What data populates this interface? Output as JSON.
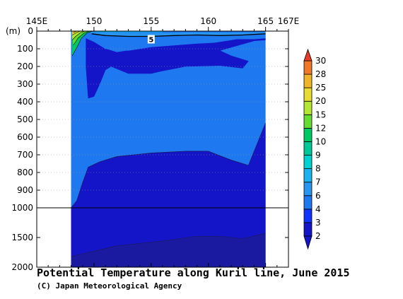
{
  "chart_data": {
    "type": "contour",
    "title": "Potential Temperature along Kuril line, June 2015",
    "credit": "(C) Japan Meteorological Agency",
    "x_axis": {
      "ticks": [
        "145E",
        "150",
        "155",
        "160",
        "165",
        "167E"
      ],
      "tick_values": [
        145,
        150,
        155,
        160,
        165,
        167
      ],
      "range": [
        145,
        167
      ]
    },
    "y_axis": {
      "unit": "(m)",
      "upper_ticks": [
        "0",
        "100",
        "200",
        "300",
        "400",
        "500",
        "600",
        "700",
        "800",
        "900",
        "1000"
      ],
      "upper_values": [
        0,
        100,
        200,
        300,
        400,
        500,
        600,
        700,
        800,
        900,
        1000
      ],
      "lower_ticks": [
        "1500",
        "2000"
      ],
      "lower_values": [
        1500,
        2000
      ],
      "range": [
        0,
        2000
      ],
      "scale_break": 1000
    },
    "data_lon_range": [
      148.0,
      165.0
    ],
    "contour_labels": [
      {
        "text": "5",
        "lon": 155.0,
        "depth": 50
      }
    ],
    "colorbar": {
      "levels": [
        "2",
        "3",
        "4",
        "6",
        "7",
        "8",
        "9",
        "10",
        "12",
        "15",
        "20",
        "25",
        "28",
        "30"
      ],
      "level_values": [
        2,
        3,
        4,
        6,
        7,
        8,
        9,
        10,
        12,
        15,
        20,
        25,
        28,
        30
      ],
      "colors": [
        "#1414c8",
        "#0f32ff",
        "#1e78f0",
        "#2896f0",
        "#19b4f0",
        "#00d2d2",
        "#00c896",
        "#00c864",
        "#64dc32",
        "#b4e632",
        "#e6dc32",
        "#f0b428",
        "#f07828",
        "#e63c28"
      ],
      "below_color": "#1414c8",
      "above_color": "#e63c28"
    },
    "regions": [
      {
        "name": "deep-layer",
        "range": "below 2",
        "color": "#1a1aa0",
        "points": [
          [
            148.0,
            1820
          ],
          [
            152.0,
            1640
          ],
          [
            156.0,
            1560
          ],
          [
            159.0,
            1480
          ],
          [
            161.0,
            1480
          ],
          [
            163.0,
            1520
          ],
          [
            165.0,
            1430
          ],
          [
            165.0,
            2000
          ],
          [
            148.0,
            2000
          ]
        ]
      },
      {
        "name": "band-2-3",
        "range": "2-3",
        "color": "#1414c8",
        "points": [
          [
            148.0,
            1000
          ],
          [
            148.5,
            960
          ],
          [
            149.0,
            860
          ],
          [
            149.5,
            770
          ],
          [
            150.5,
            740
          ],
          [
            152.0,
            710
          ],
          [
            155.0,
            690
          ],
          [
            158.0,
            680
          ],
          [
            160.0,
            680
          ],
          [
            162.0,
            730
          ],
          [
            163.5,
            760
          ],
          [
            165.0,
            520
          ],
          [
            165.0,
            1430
          ],
          [
            163.0,
            1520
          ],
          [
            161.0,
            1480
          ],
          [
            159.0,
            1480
          ],
          [
            156.0,
            1560
          ],
          [
            152.0,
            1640
          ],
          [
            148.0,
            1820
          ]
        ]
      },
      {
        "name": "band-3-4-intermediate",
        "range": "3-4",
        "color": "#1414c8",
        "points": [
          [
            149.3,
            40
          ],
          [
            150.0,
            60
          ],
          [
            151.0,
            100
          ],
          [
            152.0,
            120
          ],
          [
            153.0,
            110
          ],
          [
            155.0,
            90
          ],
          [
            157.0,
            80
          ],
          [
            159.0,
            70
          ],
          [
            160.5,
            65
          ],
          [
            161.5,
            55
          ],
          [
            162.5,
            45
          ],
          [
            164.0,
            45
          ],
          [
            165.0,
            40
          ],
          [
            165.0,
            50
          ],
          [
            164.0,
            55
          ],
          [
            161.0,
            110
          ],
          [
            162.0,
            140
          ],
          [
            163.5,
            170
          ],
          [
            163.0,
            210
          ],
          [
            161.0,
            195
          ],
          [
            158.0,
            200
          ],
          [
            156.0,
            225
          ],
          [
            155.0,
            240
          ],
          [
            153.0,
            240
          ],
          [
            151.5,
            200
          ],
          [
            151.0,
            220
          ],
          [
            150.5,
            300
          ],
          [
            150.0,
            370
          ],
          [
            149.5,
            380
          ],
          [
            149.3,
            200
          ]
        ]
      },
      {
        "name": "band-4-6",
        "range": "4-6",
        "color": "#1e78f0",
        "points": [
          [
            149.8,
            15
          ],
          [
            151.0,
            25
          ],
          [
            153.0,
            30
          ],
          [
            155.0,
            30
          ],
          [
            157.0,
            25
          ],
          [
            159.0,
            22
          ],
          [
            161.0,
            25
          ],
          [
            163.0,
            22
          ],
          [
            165.0,
            15
          ],
          [
            165.0,
            40
          ],
          [
            164.0,
            45
          ],
          [
            162.5,
            45
          ],
          [
            160.5,
            65
          ],
          [
            159.0,
            70
          ],
          [
            157.0,
            80
          ],
          [
            155.0,
            90
          ],
          [
            153.0,
            110
          ],
          [
            151.0,
            100
          ],
          [
            150.0,
            60
          ],
          [
            149.3,
            40
          ]
        ]
      },
      {
        "name": "band-6-7",
        "range": "6-7",
        "color": "#2896f0",
        "points": [
          [
            149.7,
            5
          ],
          [
            151.0,
            8
          ],
          [
            153.0,
            12
          ],
          [
            156.0,
            12
          ],
          [
            159.0,
            8
          ],
          [
            162.0,
            10
          ],
          [
            165.0,
            8
          ],
          [
            165.0,
            15
          ],
          [
            163.0,
            22
          ],
          [
            161.0,
            25
          ],
          [
            159.0,
            22
          ],
          [
            157.0,
            25
          ],
          [
            155.0,
            30
          ],
          [
            153.0,
            30
          ],
          [
            151.0,
            25
          ],
          [
            149.8,
            15
          ]
        ]
      },
      {
        "name": "band-7-8",
        "range": "7-8",
        "color": "#19b4f0",
        "points": [
          [
            150.5,
            0
          ],
          [
            156.0,
            0
          ],
          [
            156.0,
            5
          ],
          [
            153.0,
            6
          ],
          [
            151.0,
            4
          ]
        ]
      },
      {
        "name": "band-8-10",
        "range": "8-10",
        "color": "#00d2d2",
        "points": [
          [
            149.6,
            0
          ],
          [
            152.0,
            0
          ],
          [
            152.0,
            3
          ],
          [
            150.5,
            3
          ]
        ]
      },
      {
        "name": "coastal-warm-1",
        "range": "10-12",
        "color": "#00c864",
        "points": [
          [
            148.1,
            0
          ],
          [
            149.9,
            0
          ],
          [
            149.4,
            10
          ],
          [
            148.9,
            40
          ],
          [
            148.6,
            80
          ],
          [
            148.1,
            140
          ]
        ]
      },
      {
        "name": "coastal-warm-2",
        "range": "12-15",
        "color": "#64dc32",
        "points": [
          [
            148.1,
            0
          ],
          [
            149.6,
            0
          ],
          [
            149.1,
            12
          ],
          [
            148.6,
            40
          ],
          [
            148.2,
            80
          ]
        ]
      },
      {
        "name": "coastal-warm-3",
        "range": "15-20",
        "color": "#b4e632",
        "points": [
          [
            148.1,
            0
          ],
          [
            149.2,
            0
          ],
          [
            148.8,
            10
          ],
          [
            148.4,
            30
          ],
          [
            148.1,
            50
          ]
        ]
      },
      {
        "name": "coastal-warm-4",
        "range": "20-25",
        "color": "#e6dc32",
        "points": [
          [
            148.1,
            0
          ],
          [
            148.8,
            0
          ],
          [
            148.5,
            8
          ],
          [
            148.1,
            22
          ]
        ]
      },
      {
        "name": "coastal-warm-5",
        "range": "25-28",
        "color": "#f0b428",
        "points": [
          [
            148.1,
            0
          ],
          [
            148.5,
            0
          ],
          [
            148.2,
            8
          ]
        ]
      }
    ],
    "contour_lines": [
      {
        "name": "isotherm-5",
        "level": 5,
        "points": [
          [
            149.8,
            15
          ],
          [
            151.0,
            25
          ],
          [
            153.0,
            30
          ],
          [
            155.0,
            30
          ],
          [
            157.0,
            25
          ],
          [
            159.0,
            22
          ],
          [
            161.0,
            25
          ],
          [
            163.0,
            22
          ],
          [
            165.0,
            15
          ]
        ]
      },
      {
        "name": "isotherm-3",
        "level": 3,
        "points": [
          [
            148.0,
            1000
          ],
          [
            148.5,
            960
          ],
          [
            149.0,
            860
          ],
          [
            149.5,
            770
          ],
          [
            150.5,
            740
          ],
          [
            152.0,
            710
          ],
          [
            155.0,
            690
          ],
          [
            158.0,
            680
          ],
          [
            160.0,
            680
          ],
          [
            162.0,
            730
          ],
          [
            163.5,
            760
          ],
          [
            165.0,
            520
          ]
        ]
      },
      {
        "name": "isotherm-2",
        "level": 2,
        "points": [
          [
            148.0,
            1820
          ],
          [
            152.0,
            1640
          ],
          [
            156.0,
            1560
          ],
          [
            159.0,
            1480
          ],
          [
            161.0,
            1480
          ],
          [
            163.0,
            1520
          ],
          [
            165.0,
            1430
          ]
        ]
      }
    ]
  }
}
